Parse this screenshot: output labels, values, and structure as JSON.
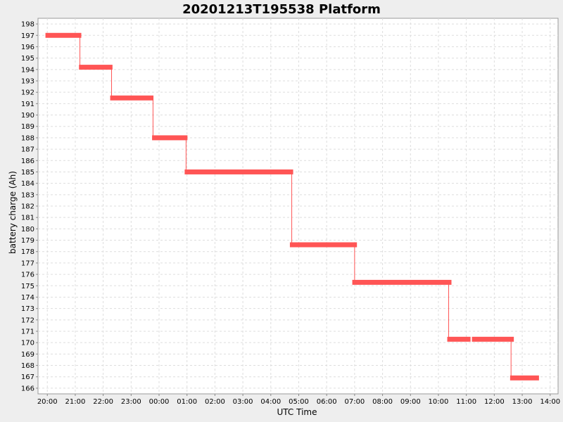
{
  "chart_data": {
    "type": "line",
    "title": "20201213T195538 Platform",
    "xlabel": "UTC Time",
    "ylabel": "battery charge (Ah)",
    "ylim": [
      165.5,
      198.5
    ],
    "y_ticks": [
      166,
      167,
      168,
      169,
      170,
      171,
      172,
      173,
      174,
      175,
      176,
      177,
      178,
      179,
      180,
      181,
      182,
      183,
      184,
      185,
      186,
      187,
      188,
      189,
      190,
      191,
      192,
      193,
      194,
      195,
      196,
      197,
      198
    ],
    "x_ticks": [
      "20:00",
      "21:00",
      "22:00",
      "23:00",
      "00:00",
      "01:00",
      "02:00",
      "03:00",
      "04:00",
      "05:00",
      "06:00",
      "07:00",
      "08:00",
      "09:00",
      "10:00",
      "11:00",
      "12:00",
      "13:00",
      "14:00"
    ],
    "xlim": [
      "19:40",
      "14:17"
    ],
    "grid": true,
    "series_color": "#ff5555",
    "segments": [
      {
        "start": "19:56",
        "end": "21:13",
        "charge": 197.0
      },
      {
        "start": "21:08",
        "end": "22:20",
        "charge": 194.2
      },
      {
        "start": "22:15",
        "end": "23:48",
        "charge": 191.5
      },
      {
        "start": "23:45",
        "end": "01:01",
        "charge": 188.0
      },
      {
        "start": "00:55",
        "end": "04:48",
        "charge": 185.0
      },
      {
        "start": "04:41",
        "end": "07:05",
        "charge": 178.6
      },
      {
        "start": "06:55",
        "end": "10:28",
        "charge": 175.3
      },
      {
        "start": "10:19",
        "end": "11:09",
        "charge": 170.3
      },
      {
        "start": "11:12",
        "end": "12:42",
        "charge": 170.3
      },
      {
        "start": "12:34",
        "end": "13:36",
        "charge": 166.9
      }
    ],
    "transitions": [
      {
        "time": "21:10",
        "from": 197.0,
        "to": 194.2
      },
      {
        "time": "22:18",
        "from": 194.2,
        "to": 191.5
      },
      {
        "time": "23:47",
        "from": 191.5,
        "to": 188.0
      },
      {
        "time": "00:58",
        "from": 188.0,
        "to": 185.0
      },
      {
        "time": "04:45",
        "from": 185.0,
        "to": 178.6
      },
      {
        "time": "07:00",
        "from": 178.6,
        "to": 175.3
      },
      {
        "time": "10:22",
        "from": 175.3,
        "to": 170.3
      },
      {
        "time": "12:36",
        "from": 170.3,
        "to": 166.9
      }
    ]
  }
}
